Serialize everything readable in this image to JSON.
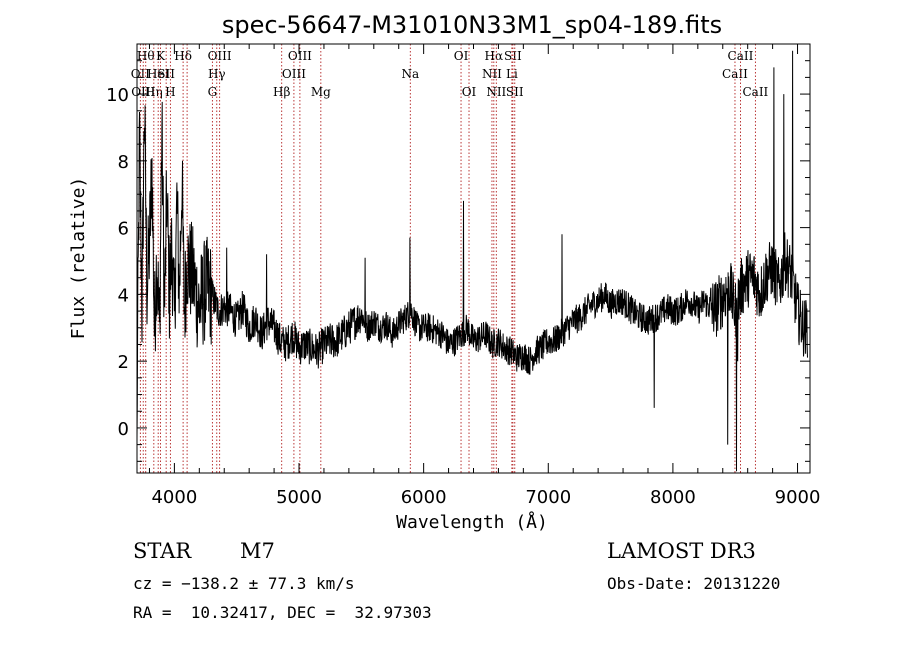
{
  "chart_data": {
    "type": "line",
    "title": "spec-56647-M31010N33M1_sp04-189.fits",
    "xlabel": "Wavelength (Å)",
    "ylabel": "Flux (relative)",
    "xlim": [
      3700,
      9100
    ],
    "ylim": [
      -1.35,
      11.5
    ],
    "xticks": [
      4000,
      5000,
      6000,
      7000,
      8000,
      9000
    ],
    "xtick_labels": [
      "4000",
      "5000",
      "6000",
      "7000",
      "8000",
      "9000"
    ],
    "yticks": [
      0,
      2,
      4,
      6,
      8,
      10
    ],
    "ytick_labels": [
      "0",
      "2",
      "4",
      "6",
      "8",
      "10"
    ],
    "series": [
      {
        "name": "flux",
        "x": [
          3700,
          3720,
          3740,
          3760,
          3780,
          3800,
          3820,
          3840,
          3860,
          3880,
          3900,
          3920,
          3940,
          3960,
          3980,
          4000,
          4020,
          4040,
          4060,
          4080,
          4100,
          4150,
          4200,
          4250,
          4300,
          4350,
          4400,
          4450,
          4500,
          4550,
          4600,
          4650,
          4700,
          4750,
          4800,
          4850,
          4900,
          4950,
          5000,
          5050,
          5100,
          5150,
          5200,
          5250,
          5300,
          5350,
          5400,
          5450,
          5500,
          5550,
          5600,
          5650,
          5700,
          5750,
          5800,
          5850,
          5900,
          5950,
          6000,
          6050,
          6100,
          6150,
          6200,
          6250,
          6300,
          6350,
          6400,
          6450,
          6500,
          6550,
          6600,
          6650,
          6700,
          6750,
          6800,
          6850,
          6900,
          6950,
          7000,
          7050,
          7100,
          7150,
          7200,
          7250,
          7300,
          7350,
          7400,
          7450,
          7500,
          7550,
          7600,
          7650,
          7700,
          7750,
          7800,
          7850,
          7900,
          7950,
          8000,
          8050,
          8100,
          8150,
          8200,
          8250,
          8300,
          8350,
          8400,
          8450,
          8500,
          8550,
          8600,
          8650,
          8700,
          8750,
          8800,
          8850,
          8900,
          8950,
          9000,
          9050,
          9080
        ],
        "y": [
          0.3,
          8.8,
          3.5,
          9.7,
          4.2,
          5.5,
          7.8,
          3.0,
          5.2,
          2.8,
          9.0,
          3.5,
          7.0,
          4.0,
          5.5,
          3.2,
          6.8,
          4.0,
          7.5,
          3.5,
          5.0,
          4.5,
          3.6,
          4.2,
          4.0,
          3.5,
          3.6,
          3.5,
          3.2,
          3.6,
          3.0,
          3.3,
          2.8,
          3.2,
          3.0,
          2.6,
          2.5,
          2.8,
          2.4,
          2.5,
          2.4,
          2.3,
          2.5,
          2.6,
          2.6,
          2.8,
          3.0,
          3.2,
          3.4,
          3.0,
          3.2,
          3.0,
          3.1,
          2.8,
          3.1,
          3.3,
          3.5,
          3.0,
          3.0,
          3.0,
          2.9,
          2.8,
          2.5,
          2.6,
          2.8,
          3.0,
          2.6,
          2.7,
          2.8,
          2.5,
          2.6,
          2.4,
          2.3,
          2.1,
          2.2,
          2.0,
          2.3,
          2.4,
          2.6,
          2.6,
          2.8,
          3.0,
          3.2,
          3.3,
          3.5,
          3.7,
          3.8,
          4.0,
          3.7,
          3.8,
          3.8,
          3.6,
          3.4,
          3.3,
          3.2,
          3.3,
          3.4,
          3.6,
          3.5,
          3.5,
          3.8,
          3.8,
          3.5,
          3.8,
          3.6,
          3.6,
          3.9,
          4.3,
          3.5,
          4.2,
          4.5,
          4.5,
          4.0,
          4.6,
          4.8,
          4.2,
          5.0,
          4.6,
          3.5,
          3.0,
          3.0
        ]
      }
    ],
    "spikes": [
      {
        "x": 8510,
        "y": -1.3
      },
      {
        "x": 8520,
        "y": 2.0
      },
      {
        "x": 8440,
        "y": -0.5
      },
      {
        "x": 8810,
        "y": 10.8
      },
      {
        "x": 8960,
        "y": 11.3
      },
      {
        "x": 8890,
        "y": 10.0
      },
      {
        "x": 7110,
        "y": 5.8
      },
      {
        "x": 7850,
        "y": 0.6
      },
      {
        "x": 6320,
        "y": 6.8
      },
      {
        "x": 5530,
        "y": 5.1
      },
      {
        "x": 5890,
        "y": 5.7
      },
      {
        "x": 4420,
        "y": 5.4
      },
      {
        "x": 3700,
        "y": -0.3
      },
      {
        "x": 4740,
        "y": 5.2
      }
    ],
    "lines": [
      {
        "x": 3727,
        "label": "OII",
        "row": 1
      },
      {
        "x": 3750,
        "label": "OIII",
        "row": 2
      },
      {
        "x": 3770,
        "label": "Hθ",
        "row": 0
      },
      {
        "x": 3835,
        "label": "Hη",
        "row": 2
      },
      {
        "x": 3870,
        "label": "HeI",
        "row": 1
      },
      {
        "x": 3889,
        "label": "K",
        "row": 0
      },
      {
        "x": 3934,
        "label": "SII",
        "row": 1
      },
      {
        "x": 3968,
        "label": "H",
        "row": 2
      },
      {
        "x": 4070,
        "label": "Hδ",
        "row": 0
      },
      {
        "x": 4102,
        "label": "",
        "row": 0
      },
      {
        "x": 4305,
        "label": "G",
        "row": 2
      },
      {
        "x": 4340,
        "label": "Hγ",
        "row": 1
      },
      {
        "x": 4363,
        "label": "OIII",
        "row": 0
      },
      {
        "x": 4861,
        "label": "Hβ",
        "row": 2
      },
      {
        "x": 4959,
        "label": "OIII",
        "row": 1
      },
      {
        "x": 5007,
        "label": "OIII",
        "row": 0
      },
      {
        "x": 5175,
        "label": "Mg",
        "row": 2
      },
      {
        "x": 5893,
        "label": "Na",
        "row": 1
      },
      {
        "x": 6300,
        "label": "OI",
        "row": 0
      },
      {
        "x": 6364,
        "label": "OI",
        "row": 2
      },
      {
        "x": 6548,
        "label": "NII",
        "row": 1
      },
      {
        "x": 6563,
        "label": "Hα",
        "row": 0
      },
      {
        "x": 6583,
        "label": "NII",
        "row": 2
      },
      {
        "x": 6708,
        "label": "Li",
        "row": 1
      },
      {
        "x": 6716,
        "label": "SII",
        "row": 0
      },
      {
        "x": 6731,
        "label": "SII",
        "row": 2
      },
      {
        "x": 8498,
        "label": "CaII",
        "row": 1
      },
      {
        "x": 8542,
        "label": "CaII",
        "row": 0
      },
      {
        "x": 8662,
        "label": "CaII",
        "row": 2
      }
    ]
  },
  "info": {
    "class_label": "STAR",
    "subclass": "M7",
    "survey": "LAMOST DR3",
    "redshift": "cz = −138.2 ± 77.3 km/s",
    "obs_date": "Obs-Date: 20131220",
    "coords": "RA =  10.32417, DEC =  32.97303"
  },
  "colors": {
    "spectrum": "#000000",
    "line_markers": "#b22222",
    "text": "#000000"
  }
}
